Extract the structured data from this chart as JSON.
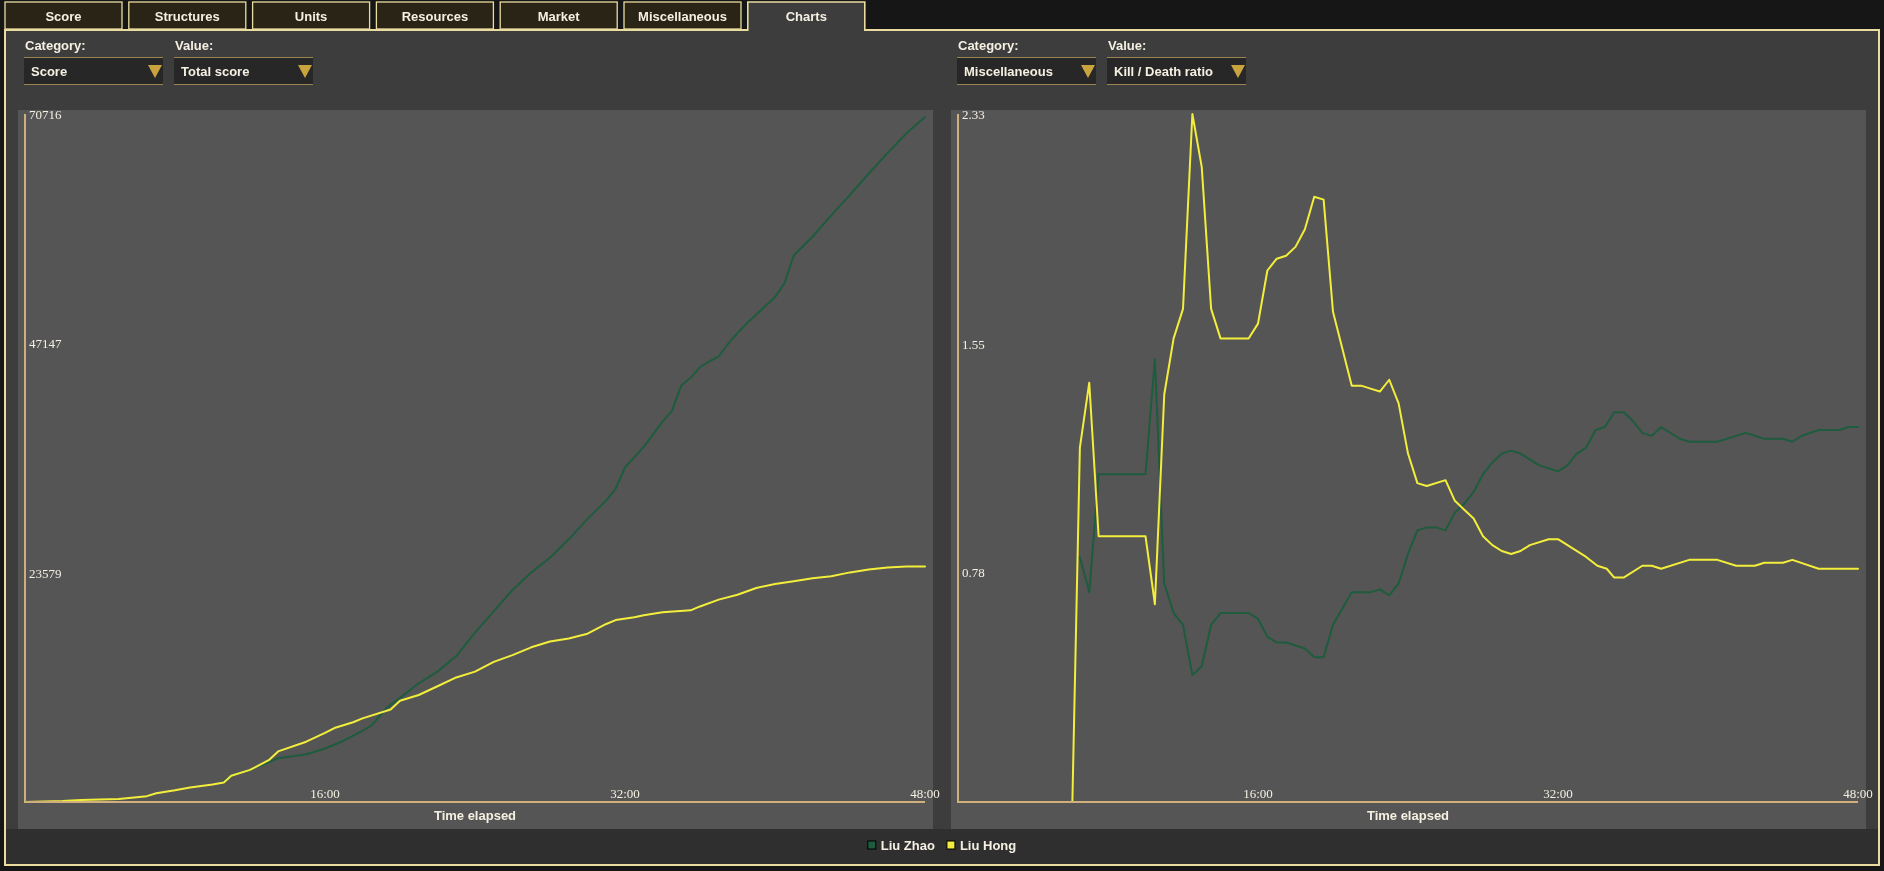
{
  "chart_data": [
    {
      "type": "other",
      "annotations": [
        "Score",
        "Structures",
        "Units",
        "Resources",
        "Market",
        "Miscellaneous",
        "Charts"
      ]
    },
    {
      "type": "line",
      "annotations": [
        "Category:",
        "Score",
        "Value:",
        "Total score"
      ],
      "xlabel": "Time elapsed",
      "xlim": [
        0,
        48
      ],
      "xticks": [
        {
          "value": 16,
          "label": "16:00"
        },
        {
          "value": 32,
          "label": "32:00"
        },
        {
          "value": 48,
          "label": "48:00"
        }
      ],
      "ylim": [
        0,
        70716
      ],
      "yticks": [
        23579,
        47147,
        70716
      ],
      "series": [
        {
          "color": "#1e5c3e",
          "x": [
            10.5,
            11,
            12,
            13.5,
            15,
            16,
            17,
            18,
            18.5,
            19.3,
            20,
            21,
            22,
            23,
            24,
            25,
            26,
            27,
            28,
            29,
            30,
            31,
            31.5,
            32,
            33,
            34,
            34.5,
            35,
            35.5,
            36,
            36.5,
            37,
            37.5,
            38,
            38.5,
            39,
            39.5,
            40,
            40.5,
            41,
            42,
            43,
            44,
            45,
            46,
            47,
            48
          ],
          "values": [
            2000,
            2700,
            3300,
            4500,
            4900,
            5500,
            6300,
            7300,
            7900,
            9700,
            10700,
            12200,
            13400,
            15000,
            17400,
            19600,
            21800,
            23600,
            25100,
            27000,
            29100,
            31000,
            32200,
            34400,
            36500,
            39100,
            40200,
            42800,
            43600,
            44700,
            45300,
            45800,
            47100,
            48200,
            49200,
            50100,
            51000,
            51900,
            53300,
            56200,
            58100,
            60300,
            62400,
            64600,
            66700,
            68700,
            70400
          ]
        },
        {
          "color": "#f3ee3b",
          "x": [
            0,
            2,
            3,
            5,
            6.5,
            7,
            8,
            8.8,
            10,
            10.6,
            11,
            12,
            13,
            13.5,
            15,
            16,
            16.5,
            17.5,
            18,
            19.5,
            20,
            21,
            22,
            23,
            24,
            25,
            26,
            27,
            28,
            29,
            30,
            31,
            31.5,
            32.5,
            33,
            34,
            35.5,
            36,
            37,
            38,
            39,
            40,
            41,
            42,
            43,
            44,
            45,
            46,
            47,
            48
          ],
          "values": [
            0,
            100,
            200,
            300,
            600,
            900,
            1200,
            1500,
            1800,
            2000,
            2700,
            3300,
            4300,
            5200,
            6200,
            7100,
            7600,
            8200,
            8600,
            9500,
            10400,
            11000,
            11900,
            12800,
            13400,
            14400,
            15100,
            15900,
            16500,
            16800,
            17300,
            18300,
            18700,
            19000,
            19200,
            19500,
            19700,
            20100,
            20800,
            21300,
            22000,
            22400,
            22700,
            23000,
            23200,
            23600,
            23900,
            24100,
            24200,
            24200
          ]
        }
      ]
    },
    {
      "type": "line",
      "annotations": [
        "Category:",
        "Miscellaneous",
        "Value:",
        "Kill / Death ratio"
      ],
      "xlabel": "Time elapsed",
      "xlim": [
        0,
        48
      ],
      "xticks": [
        {
          "value": 16,
          "label": "16:00"
        },
        {
          "value": 32,
          "label": "32:00"
        },
        {
          "value": 48,
          "label": "48:00"
        }
      ],
      "ylim": [
        0,
        2.33
      ],
      "yticks": [
        0.78,
        1.55,
        2.33
      ],
      "legend": "bottom",
      "series": [
        {
          "name": "Liu Zhao",
          "color": "#1e5c3e",
          "x": [
            6.5,
            7,
            7.5,
            10,
            10.5,
            11,
            11.5,
            12,
            12.5,
            13,
            13.5,
            14,
            15.5,
            16,
            16.5,
            17,
            17.5,
            18.5,
            19,
            19.5,
            20,
            21,
            22,
            22.5,
            23,
            23.5,
            24,
            24.5,
            25,
            25.5,
            26,
            26.5,
            27,
            27.5,
            28,
            28.5,
            29,
            29.5,
            30,
            31,
            32,
            32.5,
            33,
            33.5,
            34,
            34.5,
            35,
            35.5,
            36,
            36.5,
            37,
            37.5,
            38.5,
            39,
            40.5,
            42,
            43,
            44,
            44.5,
            45,
            45.9,
            47,
            47.5,
            48
          ],
          "values": [
            0.83,
            0.71,
            1.11,
            1.11,
            1.5,
            0.74,
            0.64,
            0.6,
            0.43,
            0.46,
            0.6,
            0.64,
            0.64,
            0.62,
            0.56,
            0.54,
            0.54,
            0.52,
            0.49,
            0.49,
            0.6,
            0.71,
            0.71,
            0.72,
            0.7,
            0.74,
            0.84,
            0.92,
            0.93,
            0.93,
            0.92,
            0.98,
            1.01,
            1.05,
            1.11,
            1.15,
            1.18,
            1.19,
            1.18,
            1.14,
            1.12,
            1.14,
            1.18,
            1.2,
            1.26,
            1.27,
            1.32,
            1.32,
            1.29,
            1.25,
            1.24,
            1.27,
            1.23,
            1.22,
            1.22,
            1.25,
            1.23,
            1.23,
            1.22,
            1.24,
            1.26,
            1.26,
            1.27,
            1.27
          ]
        },
        {
          "name": "Liu Hong",
          "color": "#f3ee3b",
          "x": [
            0,
            6.1,
            6.5,
            7,
            7.5,
            10,
            10.5,
            11,
            11.5,
            12,
            12.5,
            13,
            13.5,
            14,
            15.5,
            16,
            16.5,
            17,
            17.5,
            18,
            18.5,
            19,
            19.5,
            20,
            21,
            21.5,
            22,
            22.5,
            23,
            23.5,
            24,
            24.5,
            25,
            26,
            26.5,
            27,
            27.5,
            28,
            28.5,
            29,
            29.5,
            30,
            30.5,
            31.5,
            32,
            33.5,
            34.1,
            34.6,
            35,
            35.5,
            36.5,
            37,
            37.5,
            39,
            40.5,
            41.5,
            42.5,
            43,
            44,
            44.5,
            45.9,
            48
          ],
          "values": [
            0,
            0,
            1.2,
            1.42,
            0.9,
            0.9,
            0.67,
            1.38,
            1.57,
            1.67,
            2.33,
            2.15,
            1.67,
            1.57,
            1.57,
            1.62,
            1.8,
            1.84,
            1.85,
            1.88,
            1.94,
            2.05,
            2.04,
            1.66,
            1.41,
            1.41,
            1.4,
            1.39,
            1.43,
            1.35,
            1.18,
            1.08,
            1.07,
            1.09,
            1.02,
            0.99,
            0.96,
            0.9,
            0.87,
            0.85,
            0.84,
            0.85,
            0.87,
            0.89,
            0.89,
            0.83,
            0.8,
            0.79,
            0.76,
            0.76,
            0.8,
            0.8,
            0.79,
            0.82,
            0.82,
            0.8,
            0.8,
            0.81,
            0.81,
            0.82,
            0.79,
            0.79
          ]
        }
      ]
    }
  ]
}
